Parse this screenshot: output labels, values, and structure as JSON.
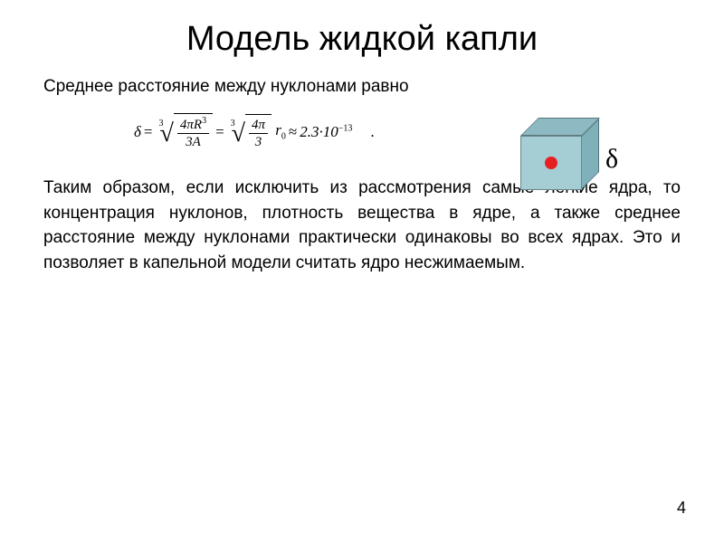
{
  "title": "Модель жидкой капли",
  "intro": "Среднее расстояние между нуклонами равно",
  "formula": {
    "lhs": "δ",
    "root_index": "3",
    "frac1_num_a": "4",
    "frac1_num_b": "π",
    "frac1_num_c": "R",
    "frac1_num_exp": "3",
    "frac1_den_a": "3",
    "frac1_den_b": "A",
    "frac2_num_a": "4",
    "frac2_num_b": "π",
    "frac2_den": "3",
    "r0": "r",
    "r0_sub": "0",
    "approx": "≈",
    "value": "2.3·10",
    "value_exp": "−13",
    "period": "."
  },
  "cube": {
    "top_color": "#8db9c2",
    "side_color": "#7fb1bb",
    "front_color": "#a5cdd4",
    "dot_color": "#e62020",
    "label": "δ"
  },
  "body": "Таким образом, если исключить из рассмотрения самые легкие ядра, то концентрация нуклонов, плотность вещества в ядре, а также среднее расстояние между нуклонами практически одинаковы во всех ядрах. Это и позволяет в капельной модели считать ядро несжимаемым.",
  "page_number": "4"
}
